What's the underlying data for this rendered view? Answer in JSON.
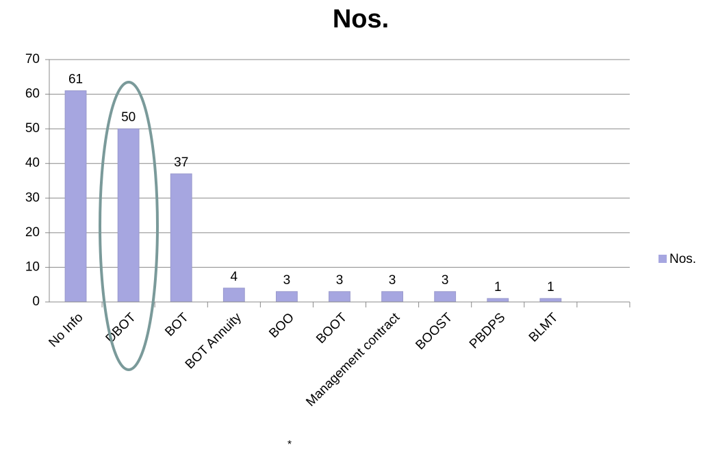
{
  "chart_data": {
    "type": "bar",
    "title": "Nos.",
    "categories": [
      "No Info",
      "DBOT",
      "BOT",
      "BOT Annuity",
      "BOO",
      "BOOT",
      "Management contract",
      "BOOST",
      "PBDPS",
      "BLMT",
      null
    ],
    "series": [
      {
        "name": "Nos.",
        "color": "#a6a6e0",
        "values": [
          61,
          50,
          37,
          4,
          3,
          3,
          3,
          3,
          1,
          1,
          null
        ]
      }
    ],
    "ylim": [
      0,
      70
    ],
    "yticks": [
      0,
      10,
      20,
      30,
      40,
      50,
      60,
      70
    ],
    "grid": true,
    "legend": "right",
    "annotation": "*"
  }
}
